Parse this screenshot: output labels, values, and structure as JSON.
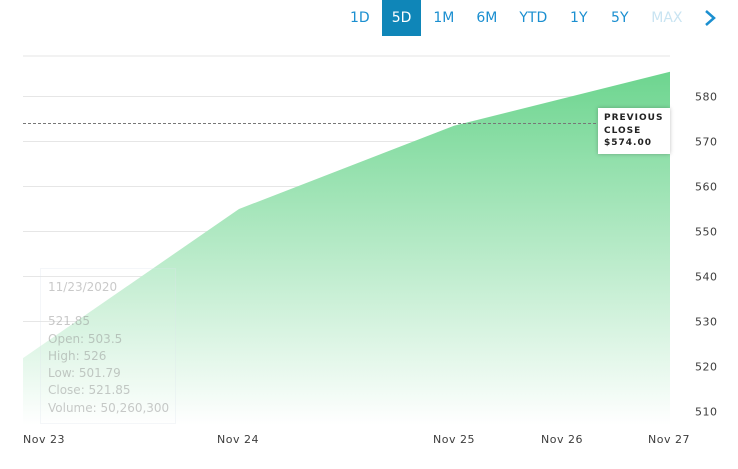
{
  "range_tabs": [
    "1D",
    "5D",
    "1M",
    "6M",
    "YTD",
    "1Y",
    "5Y",
    "MAX"
  ],
  "active_tab": "5D",
  "next_icon": "chevron-right-icon",
  "previous_close": {
    "label_line1": "PREVIOUS",
    "label_line2": "CLOSE",
    "value_text": "$574.00",
    "value": 574.0
  },
  "tooltip": {
    "date": "11/23/2020",
    "price": "521.85",
    "open": "Open: 503.5",
    "high": "High: 526",
    "low": "Low: 501.79",
    "close": "Close: 521.85",
    "volume": "Volume: 50,260,300"
  },
  "colors": {
    "area_top": "#6dd58f",
    "area_bottom": "#ffffff",
    "accent": "#0f86b8",
    "tab_text": "#1b8fd0"
  },
  "chart_data": {
    "type": "area",
    "x": [
      "Nov 23",
      "Nov 24",
      "Nov 25",
      "Nov 26",
      "Nov 27"
    ],
    "x_index": [
      0,
      1,
      2,
      3,
      4
    ],
    "values": [
      521.85,
      555.0,
      573.5,
      579.5,
      585.5
    ],
    "ylim": [
      507,
      589
    ],
    "y_ticks": [
      510,
      520,
      530,
      540,
      550,
      560,
      570,
      580
    ],
    "y_axis_side": "right",
    "grid": true,
    "reference_line": 574.0
  }
}
